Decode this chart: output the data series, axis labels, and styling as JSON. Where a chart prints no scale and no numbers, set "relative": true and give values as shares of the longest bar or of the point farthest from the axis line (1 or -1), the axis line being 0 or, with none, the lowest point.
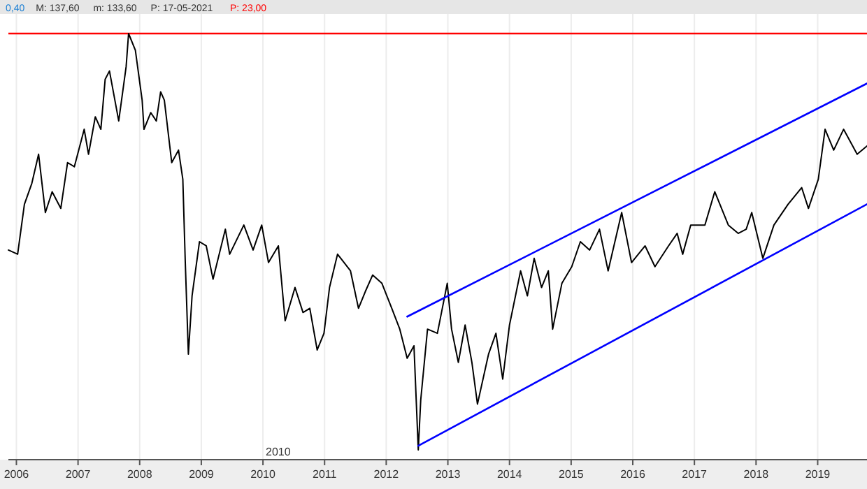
{
  "chart_data": {
    "type": "line",
    "relative": true,
    "grid": "x",
    "xlim": [
      2005.87,
      2019.8
    ],
    "xticks": [
      2006,
      2007,
      2008,
      2009,
      2010,
      2011,
      2012,
      2013,
      2014,
      2015,
      2016,
      2017,
      2018,
      2019
    ],
    "annotations": [
      "0,40",
      "M: 137,60",
      "m: 133,60",
      "P: 17-05-2021",
      "P: 23,00",
      "2010"
    ],
    "ref_lines": [
      {
        "axis": "y",
        "value": 1,
        "color": "#ff0000"
      }
    ],
    "series": [
      {
        "color": "#000000",
        "x": [
          2005.87,
          2006.02,
          2006.13,
          2006.25,
          2006.36,
          2006.47,
          2006.58,
          2006.72,
          2006.83,
          2006.94,
          2007.1,
          2007.17,
          2007.28,
          2007.37,
          2007.44,
          2007.51,
          2007.66,
          2007.78,
          2007.82,
          2007.93,
          2008.04,
          2008.07,
          2008.18,
          2008.27,
          2008.34,
          2008.4,
          2008.52,
          2008.63,
          2008.7,
          2008.74,
          2008.79,
          2008.85,
          2008.97,
          2009.08,
          2009.19,
          2009.39,
          2009.46,
          2009.69,
          2009.84,
          2009.98,
          2010.09,
          2010.25,
          2010.36,
          2010.52,
          2010.65,
          2010.76,
          2010.88,
          2010.99,
          2011.08,
          2011.21,
          2011.42,
          2011.55,
          2011.66,
          2011.78,
          2011.93,
          2012.09,
          2012.22,
          2012.34,
          2012.45,
          2012.52,
          2012.56,
          2012.67,
          2012.83,
          2012.99,
          2013.06,
          2013.17,
          2013.28,
          2013.39,
          2013.48,
          2013.66,
          2013.78,
          2013.89,
          2014.0,
          2014.18,
          2014.29,
          2014.4,
          2014.52,
          2014.63,
          2014.7,
          2014.85,
          2015.01,
          2015.15,
          2015.3,
          2015.46,
          2015.6,
          2015.82,
          2015.98,
          2016.2,
          2016.36,
          2016.58,
          2016.72,
          2016.81,
          2016.94,
          2017.17,
          2017.33,
          2017.55,
          2017.71,
          2017.84,
          2017.93,
          2018.11,
          2018.29,
          2018.52,
          2018.74,
          2018.85,
          2019.01,
          2019.12,
          2019.26,
          2019.42,
          2019.64,
          2019.8
        ],
        "values": [
          0.48,
          0.47,
          0.59,
          0.64,
          0.71,
          0.57,
          0.62,
          0.58,
          0.69,
          0.68,
          0.77,
          0.71,
          0.8,
          0.77,
          0.89,
          0.91,
          0.79,
          0.92,
          1.0,
          0.96,
          0.84,
          0.77,
          0.81,
          0.79,
          0.86,
          0.84,
          0.69,
          0.72,
          0.65,
          0.45,
          0.23,
          0.37,
          0.5,
          0.49,
          0.41,
          0.53,
          0.47,
          0.54,
          0.48,
          0.54,
          0.45,
          0.49,
          0.31,
          0.39,
          0.33,
          0.34,
          0.24,
          0.28,
          0.39,
          0.47,
          0.43,
          0.34,
          0.38,
          0.42,
          0.4,
          0.34,
          0.29,
          0.22,
          0.25,
          0.0,
          0.12,
          0.29,
          0.28,
          0.4,
          0.29,
          0.21,
          0.3,
          0.21,
          0.11,
          0.23,
          0.28,
          0.17,
          0.3,
          0.43,
          0.37,
          0.46,
          0.39,
          0.43,
          0.29,
          0.4,
          0.44,
          0.5,
          0.48,
          0.53,
          0.43,
          0.57,
          0.45,
          0.49,
          0.44,
          0.49,
          0.52,
          0.47,
          0.54,
          0.54,
          0.62,
          0.54,
          0.52,
          0.53,
          0.57,
          0.46,
          0.54,
          0.59,
          0.63,
          0.58,
          0.65,
          0.77,
          0.72,
          0.77,
          0.71,
          0.73
        ]
      },
      {
        "type": "line",
        "color": "#0000ff",
        "x": [
          2012.34,
          2019.8
        ],
        "values": [
          0.32,
          0.88
        ]
      },
      {
        "type": "line",
        "color": "#0000ff",
        "x": [
          2012.52,
          2019.8
        ],
        "values": [
          0.01,
          0.59
        ]
      }
    ]
  }
}
